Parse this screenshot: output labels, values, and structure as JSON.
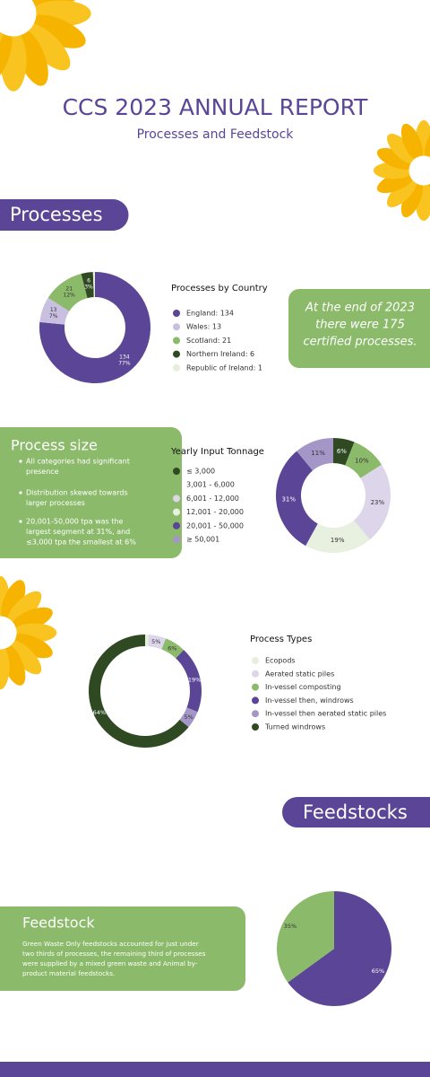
{
  "header": {
    "title": "CCS 2023 ANNUAL REPORT",
    "subtitle": "Processes and Feedstock"
  },
  "sections": {
    "processes": "Processes",
    "feedstocks": "Feedstocks"
  },
  "callout": {
    "lines": [
      "At the end of 2023",
      "there were 175",
      "certified processes."
    ]
  },
  "process_size": {
    "title": "Process size",
    "bullets": [
      [
        "All categories had significant",
        "presence"
      ],
      [
        "Distribution skewed towards",
        "larger processes"
      ],
      [
        "20,001-50,000 tpa was the",
        "largest segment at 31%, and",
        "≤3,000 tpa the smallest at 6%"
      ]
    ]
  },
  "feedstock": {
    "title": "Feedstock",
    "lines": [
      "Green Waste Only feedstocks accounted for just under",
      "two thirds of processes, the remaining third of processes",
      "were supplied by a mixed green waste and Animal by-",
      "product material feedstocks."
    ]
  },
  "chart_data": [
    {
      "type": "donut",
      "title": "Processes by Country",
      "categories": [
        "England",
        "Wales",
        "Scotland",
        "Northern Ireland",
        "Republic of Ireland"
      ],
      "legend_labels": [
        "England: 134",
        "Wales: 13",
        "Scotland: 21",
        "Northern Ireland: 6",
        "Republic of Ireland: 1"
      ],
      "values": [
        134,
        13,
        21,
        6,
        1
      ],
      "share_labels": [
        "77%",
        "7%",
        "12%",
        "3%",
        null
      ],
      "colors": [
        "#5b4596",
        "#c9bfe0",
        "#8cba6b",
        "#2f4a23",
        "#e6efdc"
      ]
    },
    {
      "type": "donut",
      "title": "Yearly Input Tonnage",
      "categories": [
        "≤ 3,000",
        "3,001 - 6,000",
        "6,001 - 12,000",
        "12,001 - 20,000",
        "20,001 - 50,000",
        "≥ 50,001"
      ],
      "values": [
        6,
        10,
        23,
        19,
        31,
        11
      ],
      "value_labels": [
        "6%",
        "10%",
        "23%",
        "19%",
        "31%",
        "11%"
      ],
      "colors": [
        "#2f4a23",
        "#8cba6b",
        "#ddd6eb",
        "#e8f1df",
        "#5b4596",
        "#a596c8"
      ]
    },
    {
      "type": "ring",
      "title": "Process Types",
      "categories": [
        "Ecopods",
        "Aerated static piles",
        "In-vessel composting",
        "In-vessel then, windrows",
        "In-vessel then aerated static piles",
        "Turned windrows"
      ],
      "values": [
        1,
        5,
        6,
        19,
        5,
        64
      ],
      "value_labels": [
        null,
        "5%",
        "6%",
        "19%",
        "5%",
        "64%"
      ],
      "colors": [
        "#e6efdc",
        "#ddd6eb",
        "#8cba6b",
        "#5b4596",
        "#a596c8",
        "#2f4a23"
      ]
    },
    {
      "type": "pie",
      "categories": [
        null,
        null
      ],
      "values": [
        65,
        35
      ],
      "value_labels": [
        "65%",
        "35%"
      ],
      "colors": [
        "#5b4596",
        "#8cba6b"
      ]
    }
  ]
}
